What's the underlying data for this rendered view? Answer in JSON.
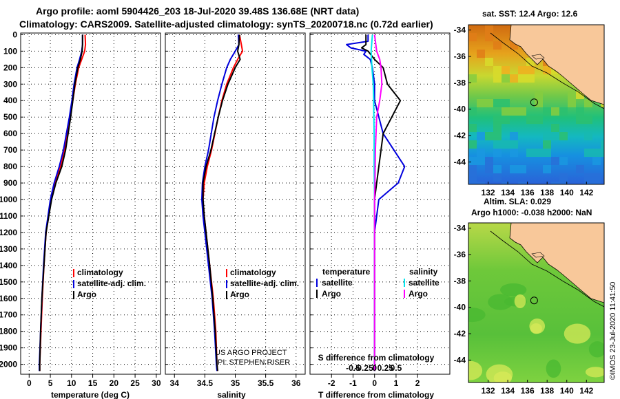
{
  "header": {
    "line1": "Argo profile: aoml 5904426_203 18-Jul-2020 39.48S 136.68E (NRT data)",
    "line2": "Climatology: CARS2009. Satellite-adjusted climatology: synTS_20200718.nc (0.72d earlier)"
  },
  "depth_ticks": [
    "0",
    "100",
    "200",
    "300",
    "400",
    "500",
    "600",
    "700",
    "800",
    "900",
    "1000",
    "1100",
    "1200",
    "1300",
    "1400",
    "1500",
    "1600",
    "1700",
    "1800",
    "1900",
    "2000"
  ],
  "credits": {
    "project": "US ARGO PROJECT",
    "pi": "PI: STEPHEN RISER"
  },
  "imos_stamp": "©IMOS 23-Jul-2020 11:41:50",
  "colors": {
    "climatology": "#ff0000",
    "satellite": "#0000dd",
    "argo": "#000000",
    "satellite_s": "#00e5ee",
    "argo_s": "#ff00ff",
    "land": "#f8c89a"
  },
  "chart_data": [
    {
      "type": "line",
      "xlabel": "temperature (deg C)",
      "ylabel": "",
      "xlim": [
        -2,
        31
      ],
      "ylim": [
        2060,
        -10
      ],
      "xticks": [
        "0",
        "5",
        "10",
        "15",
        "20",
        "25",
        "30"
      ],
      "legend": [
        "climatology",
        "satellite-adj. clim.",
        "Argo"
      ],
      "series": [
        {
          "name": "climatology",
          "depth": [
            0,
            60,
            100,
            150,
            200,
            300,
            400,
            500,
            600,
            700,
            800,
            900,
            1000,
            1200,
            1400,
            1600,
            1800,
            2000,
            2040
          ],
          "values": [
            13.2,
            13.3,
            13.1,
            12.4,
            11.7,
            10.9,
            10.3,
            9.7,
            9.0,
            8.3,
            7.4,
            6.1,
            5.2,
            4.0,
            3.5,
            3.1,
            2.8,
            2.5,
            2.5
          ]
        },
        {
          "name": "satellite-adj. clim.",
          "depth": [
            0,
            60,
            100,
            150,
            200,
            300,
            400,
            500,
            600,
            700,
            800,
            900,
            1000,
            1200,
            1400,
            1600,
            1800,
            2000,
            2040
          ],
          "values": [
            12.6,
            12.6,
            12.4,
            11.9,
            11.3,
            10.6,
            10.1,
            9.5,
            8.8,
            8.1,
            7.1,
            5.9,
            5.0,
            3.9,
            3.4,
            3.0,
            2.7,
            2.4,
            2.4
          ]
        },
        {
          "name": "Argo",
          "depth": [
            0,
            60,
            100,
            150,
            200,
            300,
            400,
            500,
            600,
            700,
            800,
            900,
            1000,
            1200,
            1400,
            1600,
            1800,
            2000,
            2040
          ],
          "values": [
            12.6,
            12.6,
            12.5,
            12.1,
            11.5,
            10.8,
            10.3,
            9.8,
            9.2,
            8.6,
            7.7,
            6.3,
            5.3,
            4.0,
            3.5,
            3.0,
            2.7,
            2.5,
            2.5
          ]
        }
      ]
    },
    {
      "type": "line",
      "xlabel": "salinity",
      "ylabel": "",
      "xlim": [
        33.85,
        36.15
      ],
      "ylim": [
        2060,
        -10
      ],
      "xticks": [
        "34",
        "34.5",
        "35",
        "35.5",
        "36"
      ],
      "legend": [
        "climatology",
        "satellite-adj. clim.",
        "Argo"
      ],
      "series": [
        {
          "name": "climatology",
          "depth": [
            0,
            100,
            150,
            200,
            300,
            400,
            500,
            700,
            800,
            900,
            1000,
            1100,
            1200,
            1400,
            1600,
            1800,
            2000,
            2040
          ],
          "values": [
            35.07,
            35.12,
            35.04,
            34.97,
            34.86,
            34.78,
            34.72,
            34.61,
            34.54,
            34.49,
            34.47,
            34.49,
            34.52,
            34.58,
            34.64,
            34.68,
            34.7,
            34.71
          ]
        },
        {
          "name": "satellite-adj. clim.",
          "depth": [
            0,
            60,
            100,
            150,
            200,
            300,
            400,
            500,
            700,
            800,
            900,
            1000,
            1100,
            1200,
            1400,
            1600,
            1800,
            2000,
            2040
          ],
          "values": [
            35.05,
            35.06,
            35.0,
            34.92,
            34.86,
            34.78,
            34.71,
            34.65,
            34.56,
            34.5,
            34.46,
            34.45,
            34.47,
            34.5,
            34.56,
            34.62,
            34.66,
            34.69,
            34.7
          ]
        },
        {
          "name": "Argo",
          "depth": [
            0,
            60,
            100,
            150,
            200,
            300,
            400,
            500,
            700,
            800,
            900,
            1000,
            1100,
            1200,
            1400,
            1600,
            1800,
            2000,
            2040
          ],
          "values": [
            35.07,
            35.06,
            35.04,
            35.08,
            35.0,
            34.88,
            34.79,
            34.72,
            34.6,
            34.52,
            34.47,
            34.47,
            34.49,
            34.52,
            34.58,
            34.63,
            34.67,
            34.7,
            34.71
          ]
        }
      ]
    },
    {
      "type": "line",
      "xlabel": "T difference from climatology",
      "ylabel": "",
      "xlim": [
        -3,
        3.5
      ],
      "ylim": [
        2060,
        -10
      ],
      "xticks": [
        "-2",
        "-1",
        "0",
        "1",
        "2"
      ],
      "s_axis_label": "S difference from climatology",
      "s_xticks": [
        "-0.5",
        "-0.25",
        "0",
        "0.25",
        "0.5"
      ],
      "legend_headers": [
        "temperature",
        "salinity"
      ],
      "legend": [
        "satellite",
        "Argo",
        "satellite",
        "Argo"
      ],
      "series": [
        {
          "name": "satellite",
          "depth": [
            0,
            40,
            60,
            80,
            100,
            120,
            150,
            200,
            300,
            400,
            600,
            700,
            800,
            900,
            1000,
            1200,
            2000,
            2040
          ],
          "values": [
            -0.3,
            -0.3,
            -1.3,
            -1.1,
            -0.4,
            -0.5,
            -0.2,
            -0.1,
            0.0,
            0.0,
            0.4,
            0.9,
            1.4,
            1.1,
            0.2,
            0.0,
            0.0,
            0.0
          ]
        },
        {
          "name": "Argo",
          "depth": [
            0,
            60,
            80,
            100,
            150,
            200,
            300,
            400,
            600,
            700,
            800,
            900,
            1000,
            1200,
            2000,
            2040
          ],
          "values": [
            -0.4,
            -0.4,
            -0.6,
            -0.3,
            0.0,
            0.4,
            0.6,
            1.2,
            0.4,
            0.3,
            0.2,
            0.1,
            0.0,
            0.0,
            0.0,
            0.0
          ]
        },
        {
          "name": "satellite",
          "depth": [
            0,
            100,
            200,
            300,
            400,
            600,
            800,
            1000,
            1400,
            2000,
            2040
          ],
          "values": [
            -0.05,
            -0.08,
            -0.06,
            -0.03,
            -0.02,
            -0.01,
            -0.01,
            0.0,
            0.0,
            0.0,
            0.0
          ]
        },
        {
          "name": "Argo",
          "depth": [
            0,
            100,
            150,
            200,
            300,
            400,
            500,
            700,
            900,
            1000,
            1400,
            2000,
            2040
          ],
          "values": [
            0.0,
            0.05,
            0.12,
            0.15,
            0.17,
            0.12,
            0.05,
            0.02,
            0.01,
            0.0,
            0.0,
            0.0,
            0.0
          ]
        }
      ]
    },
    {
      "type": "heatmap",
      "title": "sat. SST: 12.4 Argo: 12.6",
      "xlim": [
        130,
        143.8
      ],
      "ylim": [
        -45.7,
        -33.6
      ],
      "xticks": [
        "132",
        "134",
        "136",
        "138",
        "140",
        "142"
      ],
      "yticks": [
        "-34",
        "-36",
        "-38",
        "-40",
        "-42",
        "-44"
      ],
      "marker": {
        "lon": 136.68,
        "lat": -39.48
      }
    },
    {
      "type": "heatmap",
      "title_lines": [
        "Altim. SLA: 0.029",
        "Argo h1000: -0.038 h2000: NaN"
      ],
      "xlim": [
        130,
        143.8
      ],
      "ylim": [
        -45.7,
        -33.6
      ],
      "xticks": [
        "132",
        "134",
        "136",
        "138",
        "140",
        "142"
      ],
      "yticks": [
        "-34",
        "-36",
        "-38",
        "-40",
        "-42",
        "-44"
      ],
      "marker": {
        "lon": 136.68,
        "lat": -39.48
      }
    }
  ]
}
